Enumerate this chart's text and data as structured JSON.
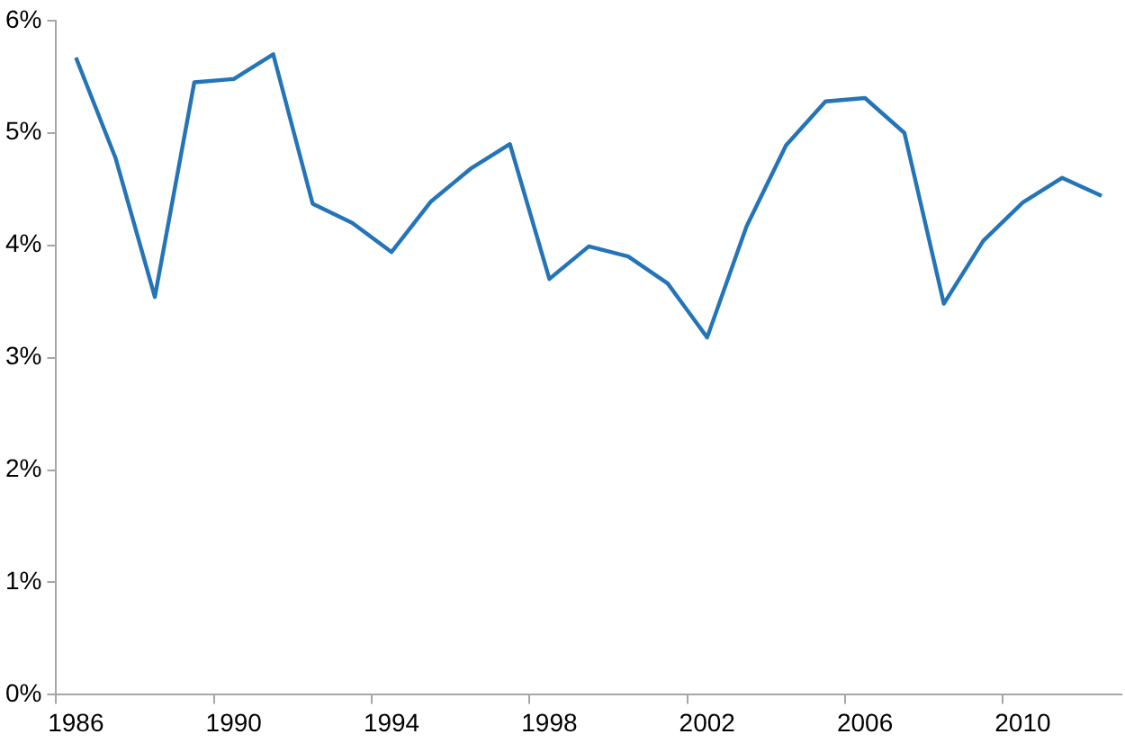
{
  "chart_data": {
    "type": "line",
    "categories": [
      "1986",
      null,
      null,
      null,
      "1990",
      null,
      null,
      null,
      "1994",
      null,
      null,
      null,
      "1998",
      null,
      null,
      null,
      "2002",
      null,
      null,
      null,
      "2006",
      null,
      null,
      null,
      "2010",
      null,
      null
    ],
    "series": [
      {
        "color": "#2474b8",
        "values": [
          5.67,
          4.78,
          3.54,
          5.45,
          5.48,
          5.7,
          4.37,
          4.2,
          3.94,
          4.39,
          4.68,
          4.9,
          3.7,
          3.99,
          3.9,
          3.66,
          3.18,
          4.17,
          4.89,
          5.28,
          5.31,
          5.0,
          3.48,
          4.04,
          4.38,
          4.6,
          4.44
        ]
      }
    ],
    "ylim": [
      0,
      6
    ],
    "yticks": [
      {
        "value": 0,
        "label": "0%"
      },
      {
        "value": 1,
        "label": "1%"
      },
      {
        "value": 2,
        "label": "2%"
      },
      {
        "value": 3,
        "label": "3%"
      },
      {
        "value": 4,
        "label": "4%"
      },
      {
        "value": 5,
        "label": "5%"
      },
      {
        "value": 6,
        "label": "6%"
      }
    ],
    "grid": false,
    "legend": false,
    "marker": "none",
    "line_style": "solid"
  }
}
